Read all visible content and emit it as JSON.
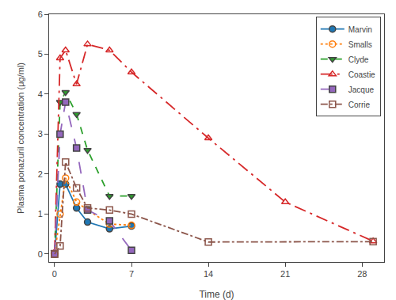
{
  "chart_data": {
    "type": "line",
    "xlabel": "Time (d)",
    "ylabel": "Plasma ponazuril concentration (μg/ml)",
    "xlim": [
      -0.5,
      30
    ],
    "ylim": [
      -0.2,
      6
    ],
    "xticks": [
      0,
      7,
      14,
      21,
      28
    ],
    "yticks": [
      0,
      1,
      2,
      3,
      4,
      5,
      6
    ],
    "grid": false,
    "legend": "upper right",
    "series": [
      {
        "name": "Marvin",
        "x": [
          0,
          0.5,
          1,
          2,
          3,
          5,
          7
        ],
        "values": [
          0,
          1.75,
          1.75,
          1.15,
          0.8,
          0.63,
          0.7
        ],
        "marker": "circle",
        "line_style": "solid"
      },
      {
        "name": "Smalls",
        "x": [
          0,
          0.5,
          1,
          2,
          3,
          5,
          7
        ],
        "values": [
          0,
          1.0,
          1.9,
          1.3,
          1.1,
          0.75,
          0.72
        ],
        "marker": "circle-open",
        "line_style": "dot"
      },
      {
        "name": "Clyde",
        "x": [
          0,
          0.5,
          1,
          2,
          3,
          5,
          7
        ],
        "values": [
          0.05,
          3.8,
          4.05,
          3.5,
          2.6,
          1.45,
          1.45
        ],
        "marker": "triangle-down",
        "line_style": "dash"
      },
      {
        "name": "Coastie",
        "x": [
          0,
          0.5,
          1,
          2,
          3,
          5,
          7,
          14,
          21,
          29
        ],
        "values": [
          0.05,
          4.9,
          5.1,
          4.25,
          5.25,
          5.1,
          4.55,
          2.9,
          1.3,
          0.32
        ],
        "marker": "triangle-up-open",
        "line_style": "longdashdot"
      },
      {
        "name": "Jacque",
        "x": [
          0,
          0.5,
          1,
          2,
          3,
          5,
          7
        ],
        "values": [
          0,
          3.0,
          3.8,
          2.65,
          1.1,
          0.83,
          0.09
        ],
        "marker": "square",
        "line_style": "longdash"
      },
      {
        "name": "Corrie",
        "x": [
          0,
          0.5,
          1,
          2,
          3,
          5,
          7,
          14,
          29
        ],
        "values": [
          0,
          0.2,
          2.3,
          1.65,
          1.15,
          1.1,
          1.0,
          0.3,
          0.31
        ],
        "marker": "square-open",
        "line_style": "dashdot"
      }
    ]
  }
}
